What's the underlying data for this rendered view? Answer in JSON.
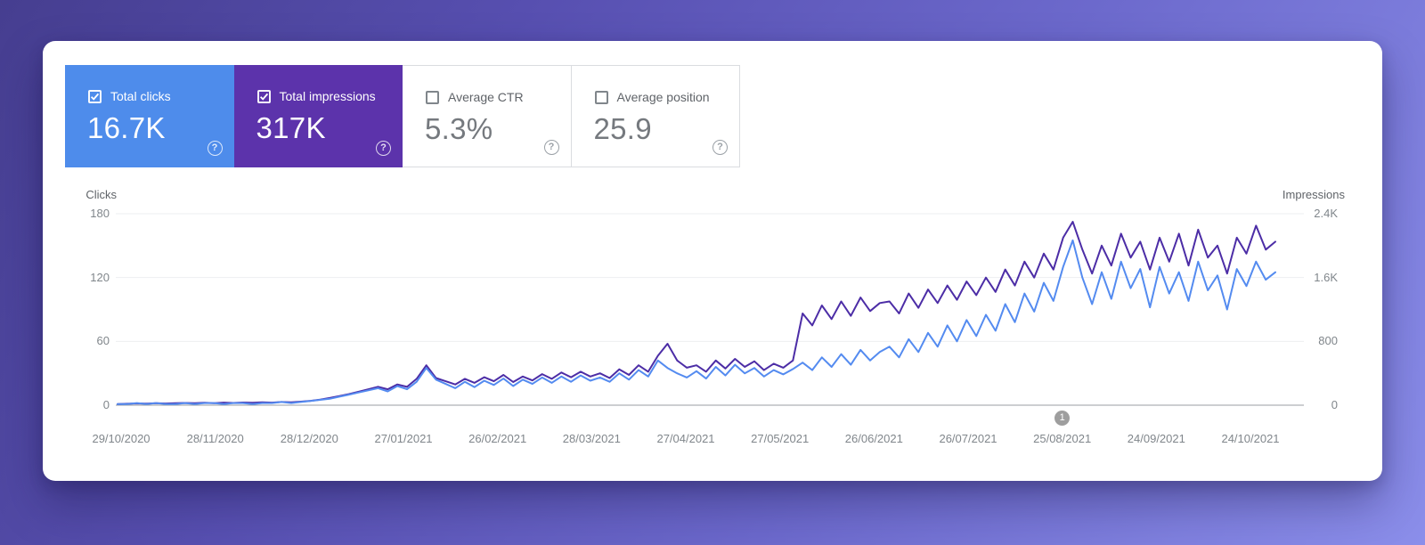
{
  "metrics": [
    {
      "label": "Total clicks",
      "value": "16.7K",
      "selected": true,
      "color": "#4e8ceb"
    },
    {
      "label": "Total impressions",
      "value": "317K",
      "selected": true,
      "color": "#5c33ab"
    },
    {
      "label": "Average CTR",
      "value": "5.3%",
      "selected": false
    },
    {
      "label": "Average position",
      "value": "25.9",
      "selected": false
    }
  ],
  "help_glyph": "?",
  "chart_data": {
    "type": "line",
    "x_labels": [
      "29/10/2020",
      "28/11/2020",
      "28/12/2020",
      "27/01/2021",
      "26/02/2021",
      "28/03/2021",
      "27/04/2021",
      "27/05/2021",
      "26/06/2021",
      "26/07/2021",
      "25/08/2021",
      "24/09/2021",
      "24/10/2021"
    ],
    "sampling": "values estimated at ~3-day intervals from 29/10/2020 to 24/10/2021",
    "grid": "horizontal",
    "left_axis": {
      "title": "Clicks",
      "ticks_top_to_bottom": [
        "180",
        "120",
        "60",
        "0"
      ],
      "max": 180
    },
    "right_axis": {
      "title": "Impressions",
      "ticks_top_to_bottom": [
        "2.4K",
        "1.6K",
        "800",
        "0"
      ],
      "max": 2400
    },
    "series": [
      {
        "name": "Clicks",
        "axis": "left",
        "color": "#548bf0",
        "values": [
          1,
          1,
          2,
          1,
          2,
          1,
          1,
          2,
          1,
          2,
          2,
          1,
          2,
          2,
          1,
          2,
          2,
          3,
          2,
          3,
          4,
          5,
          6,
          8,
          10,
          12,
          14,
          16,
          13,
          18,
          15,
          22,
          35,
          24,
          20,
          16,
          22,
          17,
          23,
          19,
          25,
          18,
          24,
          20,
          26,
          21,
          27,
          22,
          28,
          23,
          26,
          22,
          30,
          24,
          33,
          27,
          42,
          35,
          30,
          26,
          32,
          25,
          36,
          28,
          38,
          30,
          35,
          27,
          33,
          29,
          34,
          40,
          33,
          45,
          36,
          48,
          38,
          52,
          42,
          50,
          55,
          45,
          62,
          50,
          68,
          55,
          75,
          60,
          80,
          65,
          85,
          70,
          95,
          78,
          105,
          88,
          115,
          98,
          130,
          155,
          120,
          95,
          125,
          100,
          135,
          110,
          128,
          92,
          130,
          105,
          125,
          98,
          135,
          108,
          122,
          90,
          128,
          112,
          135,
          118,
          125
        ]
      },
      {
        "name": "Impressions",
        "axis": "right",
        "color": "#4c2da6",
        "values": [
          15,
          18,
          22,
          19,
          25,
          21,
          24,
          28,
          24,
          30,
          26,
          32,
          28,
          34,
          30,
          36,
          32,
          40,
          36,
          45,
          55,
          70,
          90,
          115,
          140,
          170,
          200,
          230,
          200,
          260,
          230,
          330,
          500,
          340,
          300,
          260,
          330,
          280,
          350,
          300,
          380,
          290,
          360,
          310,
          390,
          330,
          410,
          350,
          420,
          360,
          400,
          340,
          450,
          380,
          500,
          420,
          620,
          770,
          560,
          470,
          500,
          420,
          560,
          460,
          580,
          480,
          550,
          440,
          520,
          470,
          560,
          1150,
          1000,
          1250,
          1080,
          1300,
          1120,
          1350,
          1180,
          1280,
          1300,
          1150,
          1400,
          1220,
          1450,
          1280,
          1500,
          1320,
          1550,
          1380,
          1600,
          1420,
          1700,
          1500,
          1800,
          1600,
          1900,
          1700,
          2100,
          2300,
          1950,
          1650,
          2000,
          1750,
          2150,
          1850,
          2050,
          1700,
          2100,
          1800,
          2150,
          1750,
          2200,
          1850,
          2000,
          1650,
          2100,
          1900,
          2250,
          1950,
          2050
        ]
      }
    ],
    "annotation": {
      "label": "1",
      "at_x_label": "25/08/2021"
    }
  },
  "style": {
    "grid_color": "#edeff1",
    "zero_line_color": "#999ea3"
  }
}
